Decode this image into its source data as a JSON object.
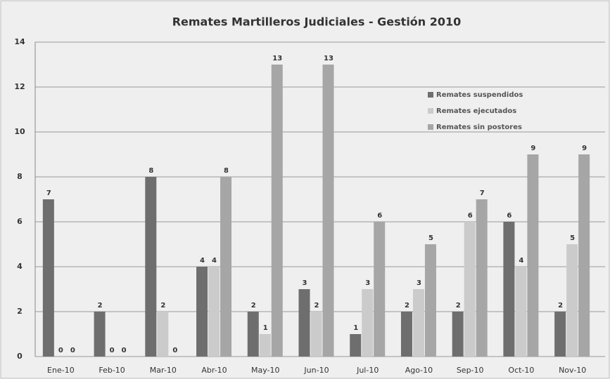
{
  "chart_data": {
    "type": "bar",
    "title": "Remates Martilleros Judiciales  - Gestión 2010",
    "categories": [
      "Ene-10",
      "Feb-10",
      "Mar-10",
      "Abr-10",
      "May-10",
      "Jun-10",
      "Jul-10",
      "Ago-10",
      "Sep-10",
      "Oct-10",
      "Nov-10"
    ],
    "series": [
      {
        "name": "Remates suspendidos",
        "color": "#6e6e6e",
        "values": [
          7,
          2,
          8,
          4,
          2,
          3,
          1,
          2,
          2,
          6,
          2
        ]
      },
      {
        "name": "Remates ejecutados",
        "color": "#cbcbcb",
        "values": [
          0,
          0,
          2,
          4,
          1,
          2,
          3,
          3,
          6,
          4,
          5
        ]
      },
      {
        "name": "Remates sin postores",
        "color": "#a6a6a6",
        "values": [
          0,
          0,
          0,
          8,
          13,
          13,
          6,
          5,
          7,
          9,
          9
        ]
      }
    ],
    "ylim": [
      0,
      14
    ],
    "yticks": [
      0,
      2,
      4,
      6,
      8,
      10,
      12,
      14
    ],
    "grid": true,
    "legend": "upper right"
  }
}
